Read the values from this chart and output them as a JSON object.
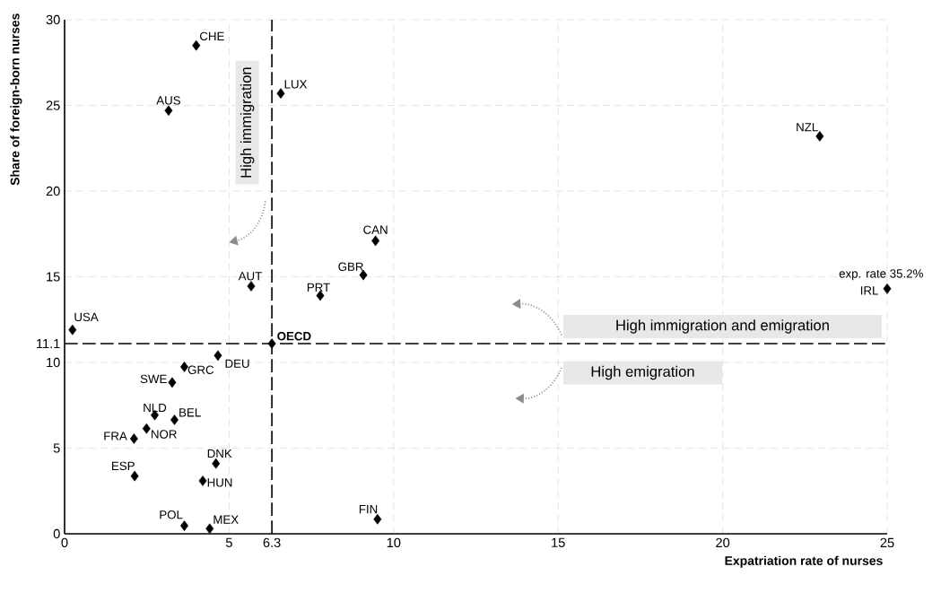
{
  "chart_data": {
    "type": "scatter",
    "xlabel": "Expatriation rate of nurses",
    "ylabel": "Share of foreign-born nurses",
    "x": [
      4.0,
      3.16,
      6.57,
      5.67,
      0.24,
      6.3,
      4.66,
      3.64,
      3.27,
      2.74,
      3.34,
      2.49,
      2.11,
      4.6,
      2.13,
      4.2,
      3.64,
      4.41,
      9.45,
      9.08,
      7.77,
      9.51,
      22.95,
      25.0
    ],
    "series": [
      {
        "color": "#000000",
        "values": [
          28.5,
          24.7,
          25.7,
          14.45,
          11.9,
          11.1,
          10.4,
          9.74,
          8.83,
          6.93,
          6.65,
          6.14,
          5.55,
          4.1,
          3.37,
          3.09,
          0.47,
          0.3,
          17.1,
          15.1,
          13.9,
          0.85,
          23.2,
          14.3
        ]
      }
    ],
    "marker": "diamond",
    "grid": true,
    "xlim": [
      0,
      25
    ],
    "ylim": [
      0,
      30
    ],
    "xticks": [
      0,
      5,
      10,
      15,
      20,
      25
    ],
    "yticks": [
      0,
      5,
      10,
      15,
      20,
      25,
      30
    ],
    "ref_lines": [
      {
        "axis": "x",
        "value": 6.3,
        "label": "6.3",
        "color": "#000000",
        "line_style": "dashed"
      },
      {
        "axis": "y",
        "value": 11.1,
        "label": "11.1",
        "color": "#000000",
        "line_style": "dashed"
      }
    ],
    "annotations": [
      {
        "text": "CHE",
        "x": 4.0,
        "y": 28.5
      },
      {
        "text": "AUS",
        "x": 3.16,
        "y": 24.7
      },
      {
        "text": "LUX",
        "x": 6.57,
        "y": 25.7
      },
      {
        "text": "AUT",
        "x": 5.67,
        "y": 14.45
      },
      {
        "text": "USA",
        "x": 0.24,
        "y": 11.9
      },
      {
        "text": "OECD",
        "x": 6.3,
        "y": 11.1
      },
      {
        "text": "DEU",
        "x": 4.66,
        "y": 10.4
      },
      {
        "text": "GRC",
        "x": 3.64,
        "y": 9.74
      },
      {
        "text": "SWE",
        "x": 3.27,
        "y": 8.83
      },
      {
        "text": "NLD",
        "x": 2.74,
        "y": 6.93
      },
      {
        "text": "BEL",
        "x": 3.34,
        "y": 6.65
      },
      {
        "text": "NOR",
        "x": 2.49,
        "y": 6.14
      },
      {
        "text": "FRA",
        "x": 2.11,
        "y": 5.55
      },
      {
        "text": "DNK",
        "x": 4.6,
        "y": 4.1
      },
      {
        "text": "ESP",
        "x": 2.13,
        "y": 3.37
      },
      {
        "text": "HUN",
        "x": 4.2,
        "y": 3.09
      },
      {
        "text": "POL",
        "x": 3.64,
        "y": 0.47
      },
      {
        "text": "MEX",
        "x": 4.41,
        "y": 0.3
      },
      {
        "text": "CAN",
        "x": 9.45,
        "y": 17.1
      },
      {
        "text": "GBR",
        "x": 9.08,
        "y": 15.1
      },
      {
        "text": "PRT",
        "x": 7.77,
        "y": 13.9
      },
      {
        "text": "FIN",
        "x": 9.51,
        "y": 0.85
      },
      {
        "text": "NZL",
        "x": 22.95,
        "y": 23.2
      },
      {
        "text": "IRL",
        "x": 25.0,
        "y": 14.3
      },
      {
        "text": "exp. rate 35.2%",
        "x": 25.0,
        "y": 14.3
      },
      "High immigration",
      "High immigration and emigration",
      "High emigration"
    ]
  }
}
